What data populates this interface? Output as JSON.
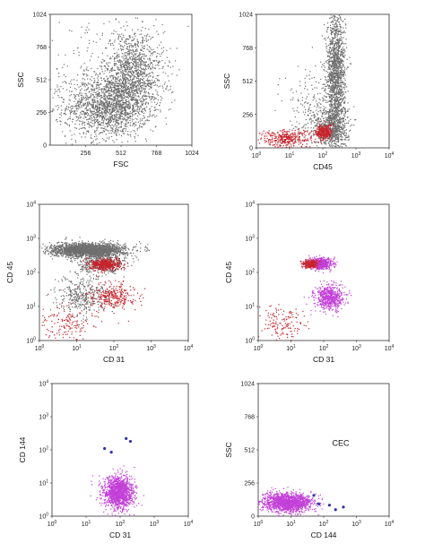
{
  "colors": {
    "gray": "#6f6f6f",
    "red": "#c8232c",
    "purple": "#c23fd8",
    "blue": "#3335a8"
  },
  "chart_data": [
    {
      "type": "scatter",
      "xlabel": "FSC",
      "ylabel": "SSC",
      "xscale": "linear",
      "yscale": "linear",
      "xlim": [
        0,
        1024
      ],
      "ylim": [
        0,
        1024
      ],
      "xticks": [
        "256",
        "512",
        "768",
        "1024"
      ],
      "yticks": [
        "0",
        "256",
        "512",
        "768",
        "1024"
      ],
      "series": [
        {
          "color": "gray",
          "blobs": [
            {
              "x": 420,
              "y": 300,
              "sx": 150,
              "sy": 120,
              "n": 1500
            },
            {
              "x": 600,
              "y": 560,
              "sx": 110,
              "sy": 170,
              "n": 1300
            },
            {
              "x": 300,
              "y": 420,
              "sx": 200,
              "sy": 250,
              "n": 250
            }
          ]
        }
      ]
    },
    {
      "type": "scatter",
      "xlabel": "CD45",
      "ylabel": "SSC",
      "xscale": "log",
      "yscale": "linear",
      "xlim": [
        1,
        10000
      ],
      "ylim": [
        0,
        1024
      ],
      "xticks": [
        "10^0",
        "10^1",
        "10^2",
        "10^3",
        "10^4"
      ],
      "yticks": [
        "0",
        "256",
        "512",
        "768",
        "1024"
      ],
      "series": [
        {
          "color": "gray",
          "blobs": [
            {
              "x": 250,
              "y": 560,
              "sx": 0.14,
              "sy": 240,
              "n": 1500
            },
            {
              "x": 180,
              "y": 150,
              "sx": 0.25,
              "sy": 90,
              "n": 700
            },
            {
              "x": 40,
              "y": 300,
              "sx": 0.45,
              "sy": 160,
              "n": 200
            }
          ]
        },
        {
          "color": "red",
          "blobs": [
            {
              "x": 8,
              "y": 70,
              "sx": 0.4,
              "sy": 35,
              "n": 350
            },
            {
              "x": 110,
              "y": 120,
              "sx": 0.12,
              "sy": 30,
              "n": 300
            }
          ]
        }
      ]
    },
    {
      "type": "scatter",
      "xlabel": "CD 31",
      "ylabel": "CD 45",
      "xscale": "log",
      "yscale": "log",
      "xlim": [
        1,
        10000
      ],
      "ylim": [
        1,
        10000
      ],
      "xticks": [
        "10^0",
        "10^1",
        "10^2",
        "10^3",
        "10^4"
      ],
      "yticks": [
        "10^0",
        "10^1",
        "10^2",
        "10^3",
        "10^4"
      ],
      "series": [
        {
          "color": "gray",
          "blobs": [
            {
              "x": 20,
              "y": 450,
              "sx": 0.5,
              "sy": 0.1,
              "n": 2200
            },
            {
              "x": 50,
              "y": 180,
              "sx": 0.3,
              "sy": 0.12,
              "n": 500
            },
            {
              "x": 15,
              "y": 20,
              "sx": 0.35,
              "sy": 0.3,
              "n": 400
            }
          ]
        },
        {
          "color": "red",
          "blobs": [
            {
              "x": 60,
              "y": 170,
              "sx": 0.2,
              "sy": 0.08,
              "n": 500
            },
            {
              "x": 100,
              "y": 20,
              "sx": 0.3,
              "sy": 0.2,
              "n": 300
            },
            {
              "x": 5,
              "y": 3,
              "sx": 0.35,
              "sy": 0.3,
              "n": 150
            }
          ]
        }
      ]
    },
    {
      "type": "scatter",
      "xlabel": "CD 31",
      "ylabel": "CD 45",
      "xscale": "log",
      "yscale": "log",
      "xlim": [
        1,
        10000
      ],
      "ylim": [
        1,
        10000
      ],
      "xticks": [
        "10^0",
        "10^1",
        "10^2",
        "10^3",
        "10^4"
      ],
      "yticks": [
        "10^0",
        "10^1",
        "10^2",
        "10^3",
        "10^4"
      ],
      "series": [
        {
          "color": "purple",
          "blobs": [
            {
              "x": 80,
              "y": 180,
              "sx": 0.18,
              "sy": 0.08,
              "n": 600
            },
            {
              "x": 150,
              "y": 18,
              "sx": 0.22,
              "sy": 0.18,
              "n": 600
            }
          ]
        },
        {
          "color": "red",
          "blobs": [
            {
              "x": 40,
              "y": 180,
              "sx": 0.12,
              "sy": 0.06,
              "n": 250
            },
            {
              "x": 6,
              "y": 3,
              "sx": 0.35,
              "sy": 0.3,
              "n": 150
            }
          ]
        }
      ]
    },
    {
      "type": "scatter",
      "xlabel": "CD 31",
      "ylabel": "CD 144",
      "xscale": "log",
      "yscale": "log",
      "xlim": [
        1,
        10000
      ],
      "ylim": [
        1,
        10000
      ],
      "xticks": [
        "10^0",
        "10^1",
        "10^2",
        "10^3",
        "10^4"
      ],
      "yticks": [
        "10^0",
        "10^1",
        "10^2",
        "10^3",
        "10^4"
      ],
      "series": [
        {
          "color": "purple",
          "blobs": [
            {
              "x": 90,
              "y": 5,
              "sx": 0.22,
              "sy": 0.25,
              "n": 1400
            }
          ]
        },
        {
          "color": "blue",
          "points": [
            {
              "x": 35,
              "y": 110
            },
            {
              "x": 55,
              "y": 85
            },
            {
              "x": 150,
              "y": 220
            },
            {
              "x": 200,
              "y": 180
            }
          ]
        }
      ]
    },
    {
      "type": "scatter",
      "xlabel": "CD 144",
      "ylabel": "SSC",
      "xscale": "log",
      "yscale": "linear",
      "xlim": [
        1,
        10000
      ],
      "ylim": [
        0,
        1024
      ],
      "xticks": [
        "10^0",
        "10^1",
        "10^2",
        "10^3",
        "10^4"
      ],
      "yticks": [
        "0",
        "256",
        "512",
        "768",
        "1024"
      ],
      "annotation": "CEC",
      "series": [
        {
          "color": "purple",
          "blobs": [
            {
              "x": 8,
              "y": 105,
              "sx": 0.38,
              "sy": 35,
              "n": 1500
            }
          ]
        },
        {
          "color": "blue",
          "points": [
            {
              "x": 50,
              "y": 160
            },
            {
              "x": 70,
              "y": 95
            },
            {
              "x": 150,
              "y": 85
            },
            {
              "x": 400,
              "y": 70
            },
            {
              "x": 230,
              "y": 50
            }
          ]
        }
      ]
    }
  ]
}
